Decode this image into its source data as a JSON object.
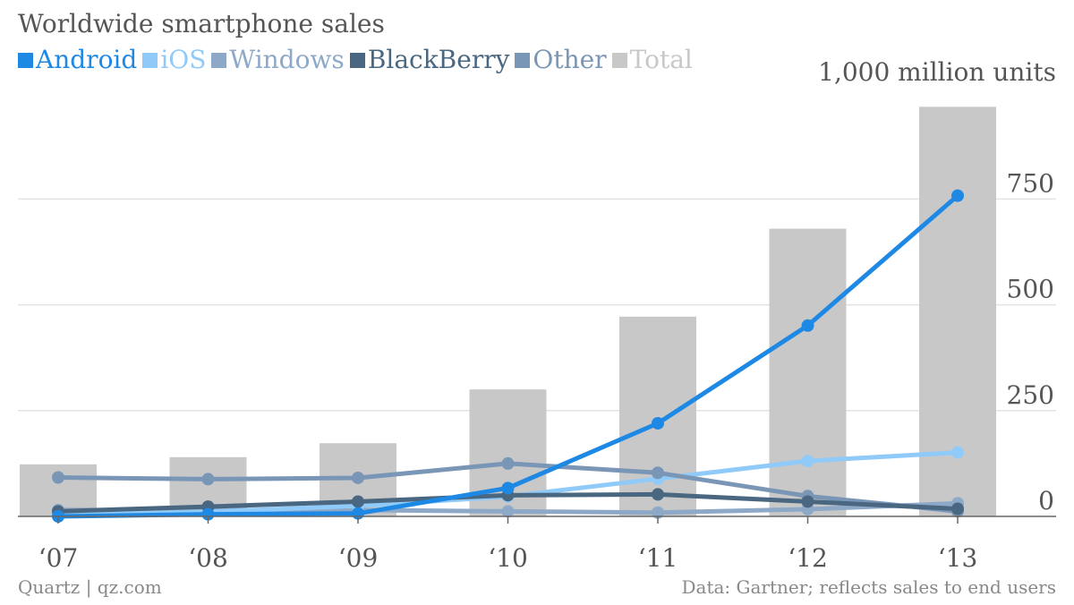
{
  "chart_data": {
    "type": "bar",
    "title": "Worldwide smartphone sales",
    "unit_label": "1,000 million units",
    "categories": [
      "‘07",
      "‘08",
      "‘09",
      "‘10",
      "‘11",
      "‘12",
      "‘13"
    ],
    "y_ticks": [
      "0",
      "250",
      "500",
      "750"
    ],
    "y_tick_values": [
      0,
      250,
      500,
      750
    ],
    "ylim": [
      0,
      1000
    ],
    "grid": true,
    "legend_position": "top-left",
    "series": [
      {
        "name": "Android",
        "type": "line",
        "color": "#1E88E5",
        "values": [
          0,
          5,
          7,
          67,
          220,
          451,
          758
        ]
      },
      {
        "name": "iOS",
        "type": "line",
        "color": "#90CAF9",
        "values": [
          3,
          11,
          25,
          47,
          89,
          131,
          151
        ]
      },
      {
        "name": "Windows",
        "type": "line",
        "color": "#8EA9C8",
        "values": [
          15,
          15,
          15,
          12,
          9,
          17,
          31
        ]
      },
      {
        "name": "BlackBerry",
        "type": "line",
        "color": "#4A6782",
        "values": [
          12,
          23,
          35,
          50,
          52,
          35,
          18
        ]
      },
      {
        "name": "Other",
        "type": "line",
        "color": "#7A96B6",
        "values": [
          92,
          88,
          91,
          125,
          103,
          48,
          12
        ]
      },
      {
        "name": "Total",
        "type": "bar",
        "color": "#C8C8C8",
        "values": [
          123,
          140,
          173,
          300,
          472,
          680,
          968
        ]
      }
    ]
  },
  "footer": {
    "left": "Quartz | qz.com",
    "right": "Data: Gartner; reflects sales to end users"
  }
}
